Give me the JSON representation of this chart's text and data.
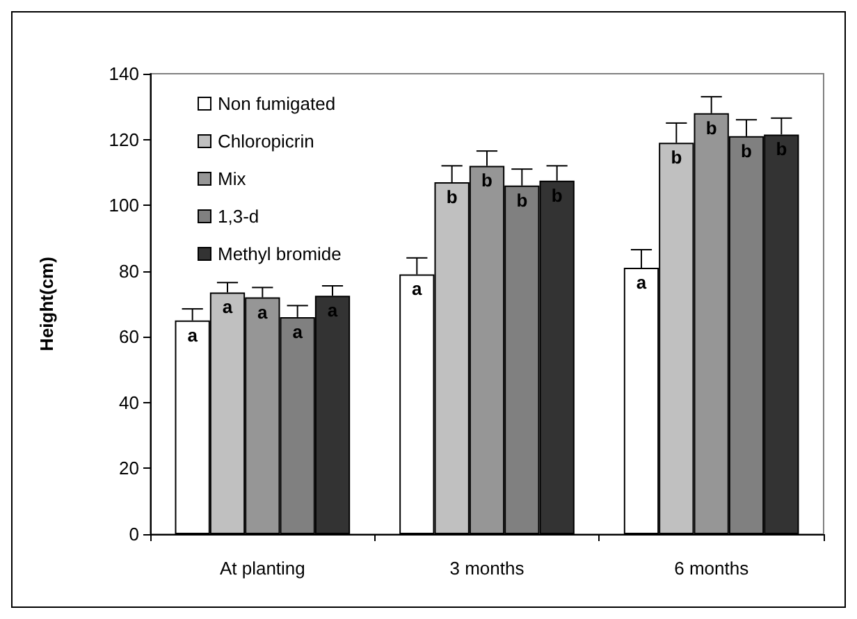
{
  "chart_data": {
    "type": "bar",
    "ylabel": "Height(cm)",
    "categories": [
      "At planting",
      "3 months",
      "6 months"
    ],
    "series": [
      {
        "name": "Non fumigated",
        "color": "#ffffff",
        "values": [
          65,
          79,
          81
        ],
        "errors": [
          [
            65,
            68.5
          ],
          [
            79,
            84
          ],
          [
            81,
            86.5
          ]
        ],
        "value_labels": [
          "a",
          "a",
          "a"
        ]
      },
      {
        "name": "Chloropicrin",
        "color": "#c0c0c0",
        "values": [
          73.5,
          107,
          119
        ],
        "errors": [
          [
            73.5,
            76.5
          ],
          [
            107,
            112
          ],
          [
            119,
            125
          ]
        ],
        "value_labels": [
          "a",
          "b",
          "b"
        ]
      },
      {
        "name": "Mix",
        "color": "#969696",
        "values": [
          72,
          112,
          128
        ],
        "errors": [
          [
            72,
            75
          ],
          [
            112,
            116.5
          ],
          [
            128,
            133
          ]
        ],
        "value_labels": [
          "a",
          "b",
          "b"
        ]
      },
      {
        "name": "1,3-d",
        "color": "#808080",
        "values": [
          66,
          106,
          121
        ],
        "errors": [
          [
            66,
            69.5
          ],
          [
            106,
            111
          ],
          [
            121,
            126
          ]
        ],
        "value_labels": [
          "a",
          "b",
          "b"
        ]
      },
      {
        "name": "Methyl bromide",
        "color": "#333333",
        "values": [
          72.5,
          107.5,
          121.5
        ],
        "errors": [
          [
            72.5,
            75.5
          ],
          [
            107.5,
            112
          ],
          [
            121.5,
            126.5
          ]
        ],
        "value_labels": [
          "a",
          "b",
          "b"
        ]
      }
    ],
    "ylim": [
      0,
      140
    ],
    "yticks": [
      0,
      20,
      40,
      60,
      80,
      100,
      120,
      140
    ],
    "legend": "top left"
  }
}
